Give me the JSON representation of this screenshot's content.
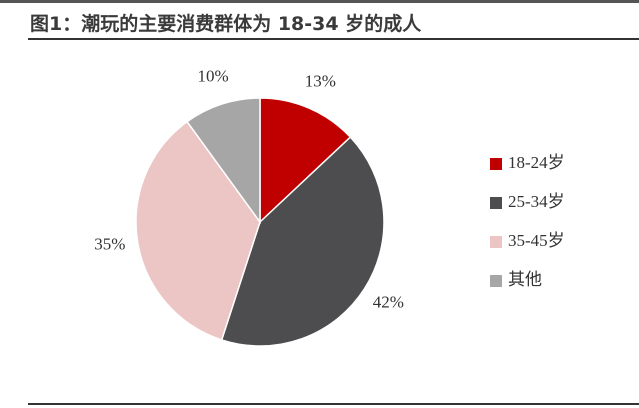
{
  "chart_data": {
    "type": "pie",
    "title": "图1：潮玩的主要消费群体为 18-34 岁的成人",
    "categories": [
      "18-24岁",
      "25-34岁",
      "35-45岁",
      "其他"
    ],
    "values": [
      13,
      42,
      35,
      10
    ],
    "value_labels": [
      "13%",
      "42%",
      "35%",
      "10%"
    ],
    "colors": [
      "#c00000",
      "#4d4d4f",
      "#ecc5c5",
      "#a6a6a6"
    ],
    "legend": "right"
  }
}
